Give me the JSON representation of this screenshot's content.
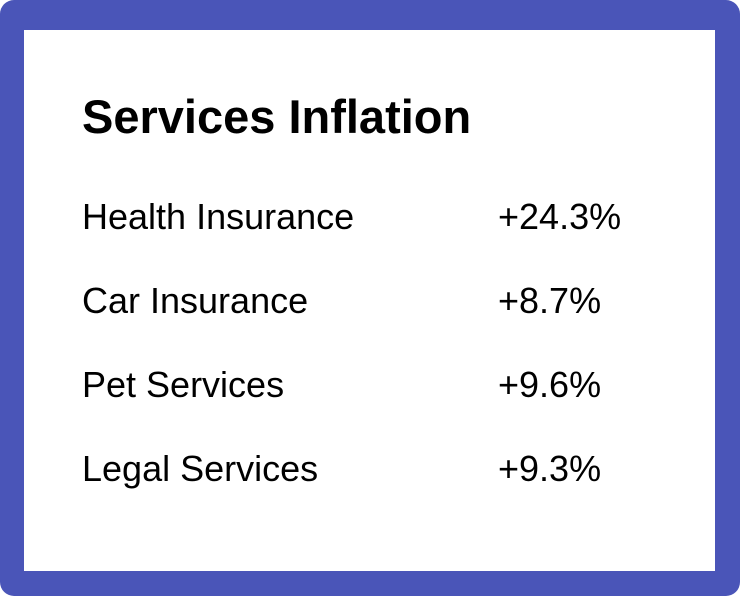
{
  "card": {
    "title": "Services Inflation",
    "items": [
      {
        "label": "Health Insurance",
        "value": "+24.3%"
      },
      {
        "label": "Car Insurance",
        "value": "+8.7%"
      },
      {
        "label": "Pet Services",
        "value": "+9.6%"
      },
      {
        "label": "Legal Services",
        "value": "+9.3%"
      }
    ]
  },
  "colors": {
    "frame": "#4a55b8",
    "background": "#ffffff",
    "text": "#000000"
  }
}
